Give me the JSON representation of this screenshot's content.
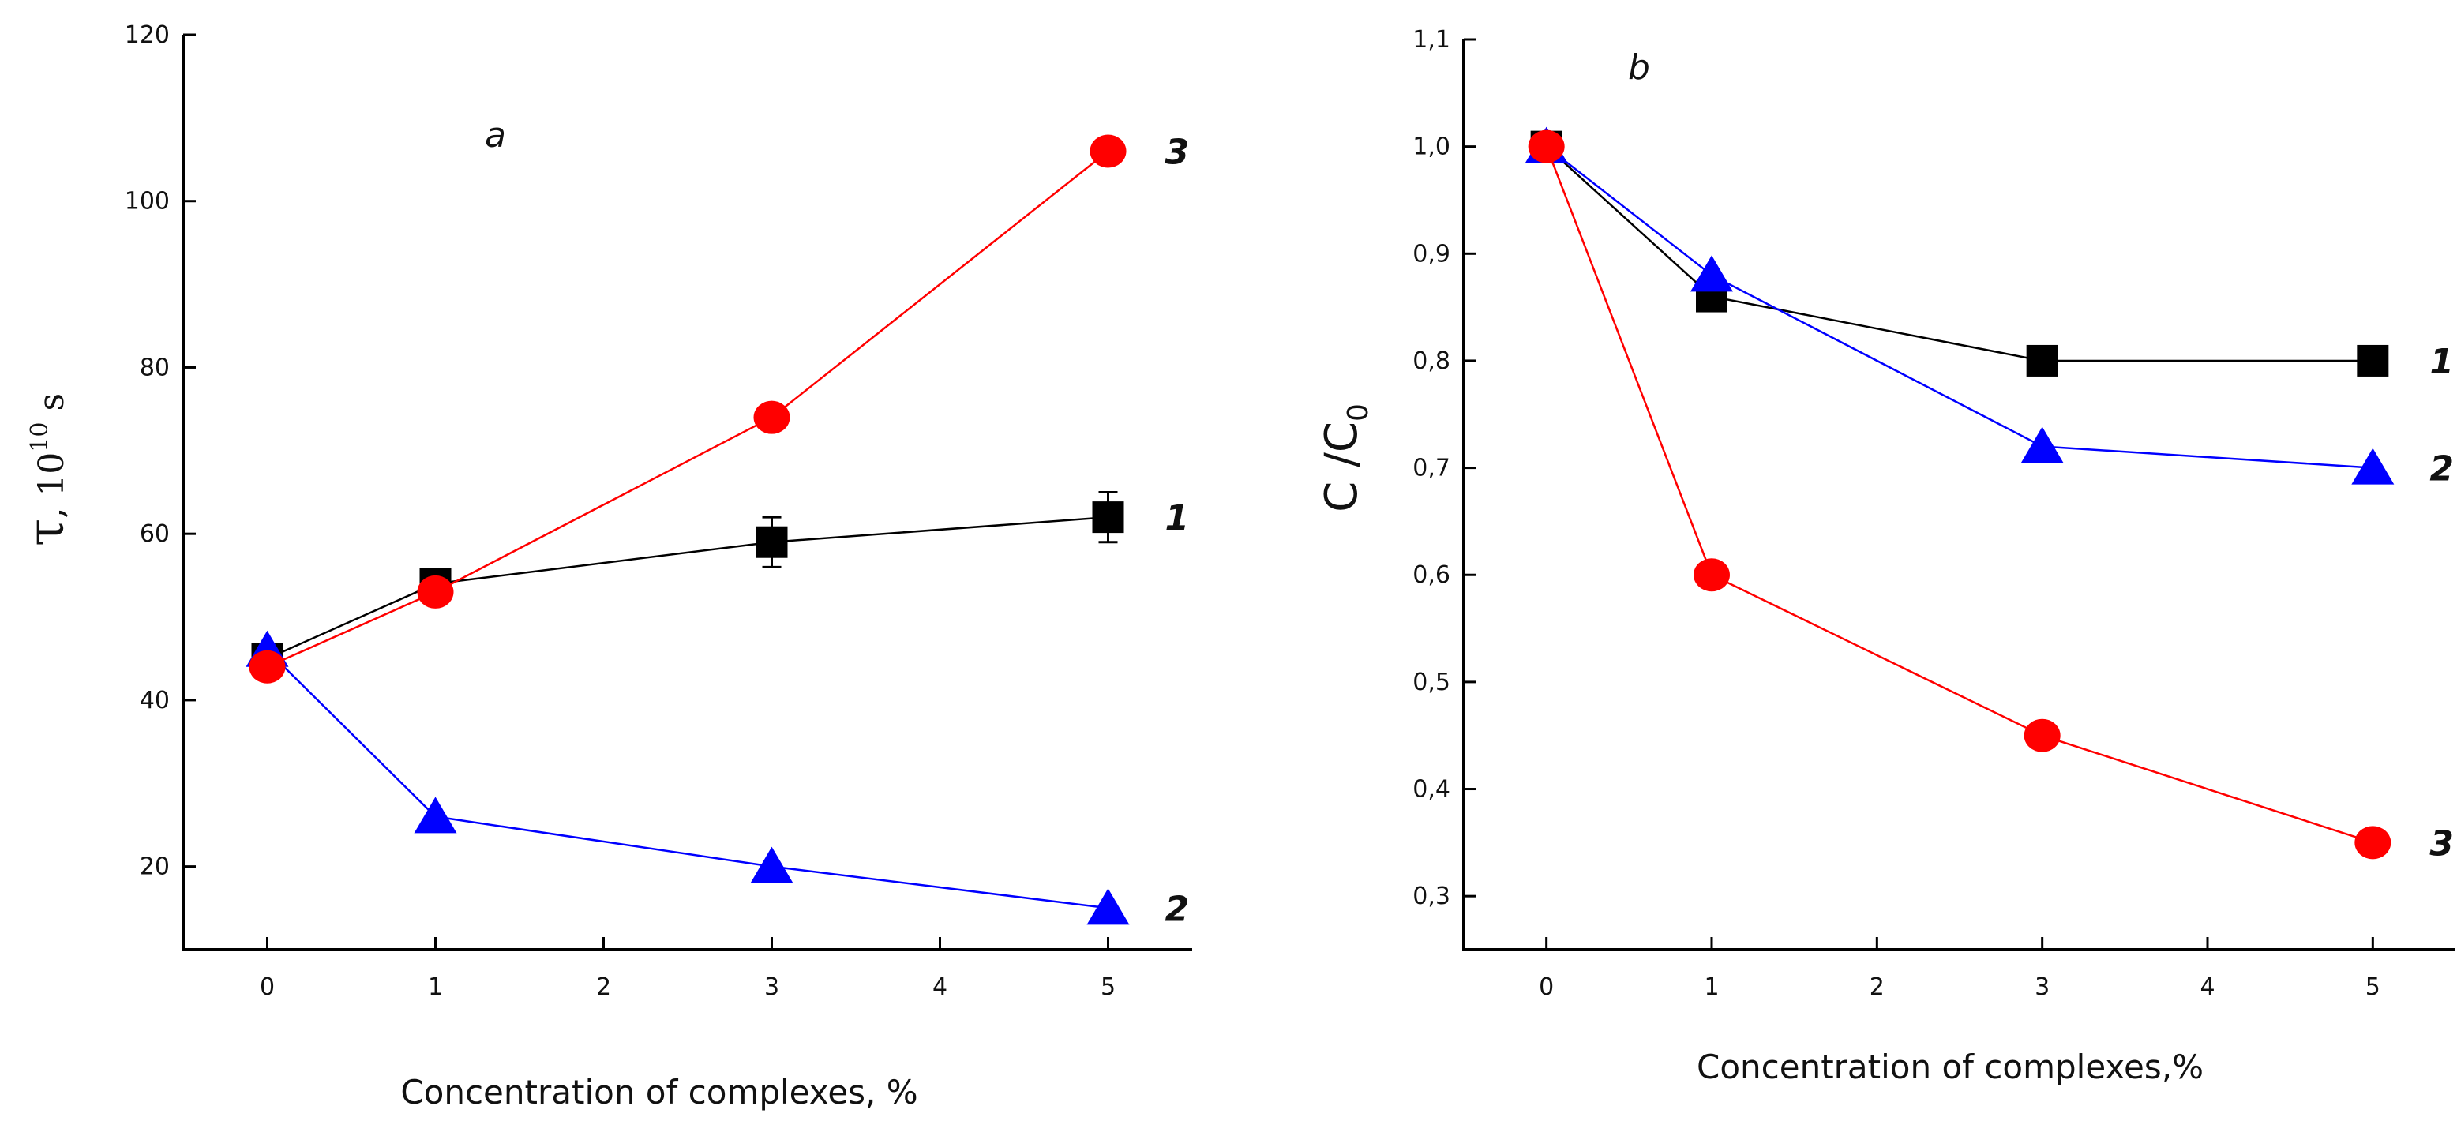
{
  "chart_data": [
    {
      "type": "line",
      "panel_label": "a",
      "title": "",
      "xlabel": "Concentration of complexes, %",
      "ylabel": {
        "symbol": "τ",
        "sep": ", ",
        "base": "10",
        "exp": "10",
        "unit": " s"
      },
      "xlim": [
        -0.5,
        5.5
      ],
      "ylim": [
        10,
        120
      ],
      "xticks": [
        0,
        1,
        2,
        3,
        4,
        5
      ],
      "xtick_labels": [
        "0",
        "1",
        "2",
        "3",
        "4",
        "5"
      ],
      "yticks": [
        20,
        40,
        60,
        80,
        100,
        120
      ],
      "ytick_labels": [
        "20",
        "40",
        "60",
        "80",
        "100",
        "120"
      ],
      "grid": false,
      "series": [
        {
          "name": "1",
          "label": "1",
          "color": "#000000",
          "marker": "square",
          "x": [
            0,
            1,
            3,
            5
          ],
          "y": [
            45,
            54,
            59,
            62
          ],
          "yerr": [
            0.8,
            1.5,
            3,
            3
          ]
        },
        {
          "name": "2",
          "label": "2",
          "color": "#0000ff",
          "marker": "triangle",
          "x": [
            0,
            1,
            3,
            5
          ],
          "y": [
            46,
            26,
            20,
            15
          ]
        },
        {
          "name": "3",
          "label": "3",
          "color": "#ff0000",
          "marker": "circle",
          "x": [
            0,
            1,
            3,
            5
          ],
          "y": [
            44,
            53,
            74,
            106
          ]
        }
      ]
    },
    {
      "type": "line",
      "panel_label": "b",
      "title": "",
      "xlabel": "Concentration of complexes,%",
      "ylabel": {
        "main": "C /C",
        "sub": "0"
      },
      "xlim": [
        -0.5,
        5.5
      ],
      "ylim": [
        0.25,
        1.1
      ],
      "xticks": [
        0,
        1,
        2,
        3,
        4,
        5
      ],
      "xtick_labels": [
        "0",
        "1",
        "2",
        "3",
        "4",
        "5"
      ],
      "yticks": [
        0.3,
        0.4,
        0.5,
        0.6,
        0.7,
        0.8,
        0.9,
        1.0,
        1.1
      ],
      "ytick_labels": [
        "0,3",
        "0,4",
        "0,5",
        "0,6",
        "0,7",
        "0,8",
        "0,9",
        "1,0",
        "1,1"
      ],
      "grid": false,
      "series": [
        {
          "name": "1",
          "label": "1",
          "color": "#000000",
          "marker": "square",
          "x": [
            0,
            1,
            3,
            5
          ],
          "y": [
            1.0,
            0.86,
            0.8,
            0.8
          ]
        },
        {
          "name": "2",
          "label": "2",
          "color": "#0000ff",
          "marker": "triangle",
          "x": [
            0,
            1,
            3,
            5
          ],
          "y": [
            1.0,
            0.88,
            0.72,
            0.7
          ]
        },
        {
          "name": "3",
          "label": "3",
          "color": "#ff0000",
          "marker": "circle",
          "x": [
            0,
            1,
            3,
            5
          ],
          "y": [
            1.0,
            0.6,
            0.45,
            0.35
          ]
        }
      ]
    }
  ]
}
